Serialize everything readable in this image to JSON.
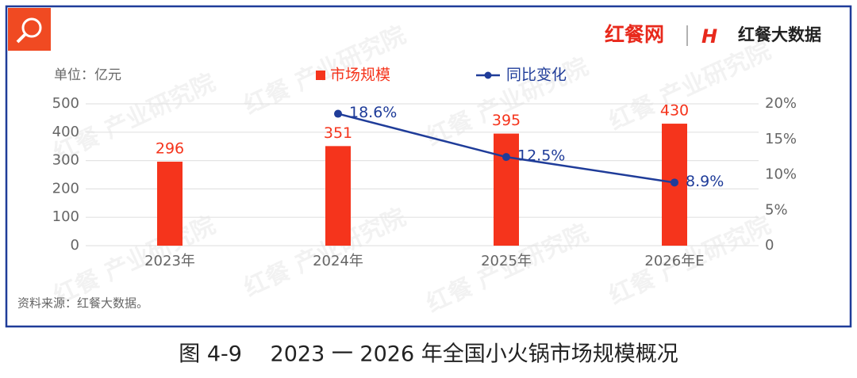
{
  "header": {
    "brand": "红餐网",
    "brand2": "红餐大数据"
  },
  "watermark": "红餐 产业研究院",
  "chart_data": {
    "type": "bar",
    "unit_label": "单位：亿元",
    "source": "资料来源：红餐大数据。",
    "caption": "图 4-9　 2023 一 2026 年全国小火锅市场规模概况",
    "categories": [
      "2023年",
      "2024年",
      "2025年",
      "2026年E"
    ],
    "series": [
      {
        "name": "市场规模",
        "type": "bar",
        "color": "#f5341c",
        "values": [
          296,
          351,
          395,
          430
        ]
      },
      {
        "name": "同比变化",
        "type": "line",
        "color": "#1f3c99",
        "axis": "y2",
        "values": [
          null,
          18.6,
          12.5,
          8.9
        ],
        "value_labels": [
          null,
          "18.6%",
          "12.5%",
          "8.9%"
        ]
      }
    ],
    "ylim": [
      0,
      500
    ],
    "yticks": [
      0,
      100,
      200,
      300,
      400,
      500
    ],
    "y2lim": [
      0,
      20
    ],
    "y2ticks": [
      0,
      {
        "value": 5,
        "label": "5%"
      },
      {
        "value": 10,
        "label": "10%"
      },
      {
        "value": 15,
        "label": "15%"
      },
      {
        "value": 20,
        "label": "20%"
      }
    ],
    "grid": true,
    "legend": "top"
  }
}
